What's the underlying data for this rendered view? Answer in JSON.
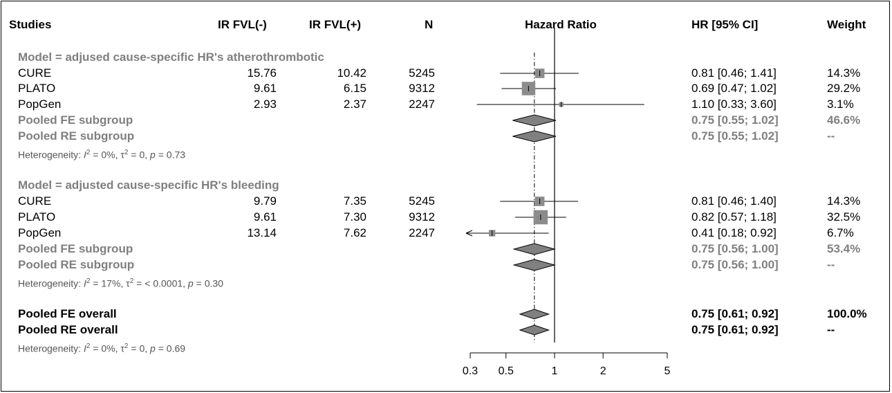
{
  "headers": {
    "studies": "Studies",
    "ir_minus": "IR FVL(-)",
    "ir_plus": "IR FVL(+)",
    "n": "N",
    "hazard_ratio": "Hazard Ratio",
    "hr_ci": "HR [95% CI]",
    "weight": "Weight"
  },
  "subgroups": [
    {
      "title": "Model = adjused cause-specific HR's atherothrombotic",
      "studies": [
        {
          "name": "CURE",
          "ir_minus": "15.76",
          "ir_plus": "10.42",
          "n": "5245",
          "hr_text": "0.81 [0.46; 1.41]",
          "weight": "14.3%"
        },
        {
          "name": "PLATO",
          "ir_minus": "9.61",
          "ir_plus": "6.15",
          "n": "9312",
          "hr_text": "0.69 [0.47; 1.02]",
          "weight": "29.2%"
        },
        {
          "name": "PopGen",
          "ir_minus": "2.93",
          "ir_plus": "2.37",
          "n": "2247",
          "hr_text": "1.10 [0.33; 3.60]",
          "weight": "3.1%"
        }
      ],
      "pooled_fe": {
        "label": "Pooled FE subgroup",
        "hr_text": "0.75 [0.55; 1.02]",
        "weight": "46.6%"
      },
      "pooled_re": {
        "label": "Pooled RE subgroup",
        "hr_text": "0.75 [0.55; 1.02]",
        "weight": "--"
      },
      "het": {
        "i2": "0%",
        "tau2": "0",
        "p": "0.73"
      }
    },
    {
      "title": "Model = adjusted cause-specific HR's bleeding",
      "studies": [
        {
          "name": "CURE",
          "ir_minus": "9.79",
          "ir_plus": "7.35",
          "n": "5245",
          "hr_text": "0.81 [0.46; 1.40]",
          "weight": "14.3%"
        },
        {
          "name": "PLATO",
          "ir_minus": "9.61",
          "ir_plus": "7.30",
          "n": "9312",
          "hr_text": "0.82 [0.57; 1.18]",
          "weight": "32.5%"
        },
        {
          "name": "PopGen",
          "ir_minus": "13.14",
          "ir_plus": "7.62",
          "n": "2247",
          "hr_text": "0.41 [0.18; 0.92]",
          "weight": "6.7%"
        }
      ],
      "pooled_fe": {
        "label": "Pooled FE subgroup",
        "hr_text": "0.75 [0.56; 1.00]",
        "weight": "53.4%"
      },
      "pooled_re": {
        "label": "Pooled RE subgroup",
        "hr_text": "0.75 [0.56; 1.00]",
        "weight": "--"
      },
      "het": {
        "i2": "17%",
        "tau2": "< 0.0001",
        "p": "0.30"
      }
    }
  ],
  "overall": {
    "pooled_fe": {
      "label": "Pooled FE overall",
      "hr_text": "0.75 [0.61; 0.92]",
      "weight": "100.0%"
    },
    "pooled_re": {
      "label": "Pooled RE overall",
      "hr_text": "0.75 [0.61; 0.92]",
      "weight": "--"
    },
    "het": {
      "i2": "0%",
      "tau2": "0",
      "p": "0.69"
    }
  },
  "colors": {
    "square": "#8c8c8c",
    "diamond": "#808080",
    "subgroup_text": "#7f7f7f",
    "line": "#000000"
  },
  "chart_data": {
    "type": "forest",
    "x_scale": "log",
    "xlim": [
      0.3,
      5
    ],
    "x_ticks": [
      0.3,
      0.5,
      1,
      2,
      5
    ],
    "x_tick_labels": [
      "0.3",
      "0.5",
      "1",
      "2",
      "5"
    ],
    "reference_line": 1,
    "pooled_reference_line": 0.75,
    "subgroups": [
      {
        "name": "Model = adjused cause-specific HR's atherothrombotic",
        "studies": [
          {
            "study": "CURE",
            "hr": 0.81,
            "lower": 0.46,
            "upper": 1.41,
            "weight": 14.3
          },
          {
            "study": "PLATO",
            "hr": 0.69,
            "lower": 0.47,
            "upper": 1.02,
            "weight": 29.2
          },
          {
            "study": "PopGen",
            "hr": 1.1,
            "lower": 0.33,
            "upper": 3.6,
            "weight": 3.1
          }
        ],
        "pooled_fe": {
          "hr": 0.75,
          "lower": 0.55,
          "upper": 1.02
        },
        "pooled_re": {
          "hr": 0.75,
          "lower": 0.55,
          "upper": 1.02
        }
      },
      {
        "name": "Model = adjusted cause-specific HR's bleeding",
        "studies": [
          {
            "study": "CURE",
            "hr": 0.81,
            "lower": 0.46,
            "upper": 1.4,
            "weight": 14.3
          },
          {
            "study": "PLATO",
            "hr": 0.82,
            "lower": 0.57,
            "upper": 1.18,
            "weight": 32.5
          },
          {
            "study": "PopGen",
            "hr": 0.41,
            "lower": 0.18,
            "upper": 0.92,
            "weight": 6.7
          }
        ],
        "pooled_fe": {
          "hr": 0.75,
          "lower": 0.56,
          "upper": 1.0
        },
        "pooled_re": {
          "hr": 0.75,
          "lower": 0.56,
          "upper": 1.0
        }
      }
    ],
    "overall": {
      "pooled_fe": {
        "hr": 0.75,
        "lower": 0.61,
        "upper": 0.92
      },
      "pooled_re": {
        "hr": 0.75,
        "lower": 0.61,
        "upper": 0.92
      }
    }
  }
}
